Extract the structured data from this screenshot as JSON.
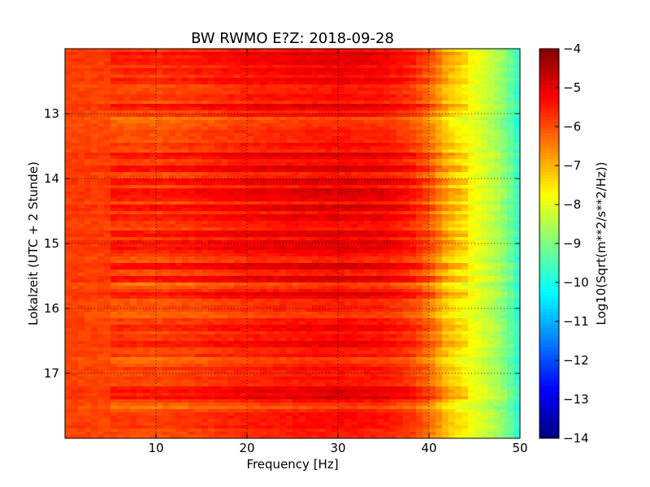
{
  "chart_data": {
    "type": "heatmap",
    "title": "BW RWMO E?Z: 2018-09-28",
    "xlabel": "Frequency [Hz]",
    "ylabel": "Lokalzeit (UTC + 2 Stunde)",
    "colorbar_label": "Log10(Sqrt(m**2/s**2/Hz))",
    "xlim": [
      0,
      50
    ],
    "ylim": [
      18.0,
      12.0
    ],
    "x_ticks": [
      10,
      20,
      30,
      40,
      50
    ],
    "y_ticks": [
      13,
      14,
      15,
      16,
      17
    ],
    "colorbar_range": [
      -14,
      -4
    ],
    "colorbar_ticks": [
      -4,
      -5,
      -6,
      -7,
      -8,
      -9,
      -10,
      -11,
      -12,
      -13,
      -14
    ],
    "colormap": "jet",
    "grid": true,
    "frequency_profile_hz": [
      0,
      5,
      10,
      15,
      20,
      25,
      30,
      35,
      38,
      40,
      42,
      44,
      46,
      48,
      50
    ],
    "frequency_profile_value": [
      -5.9,
      -5.9,
      -5.95,
      -5.8,
      -5.6,
      -5.5,
      -5.4,
      -5.5,
      -5.8,
      -6.3,
      -7.2,
      -7.7,
      -8.2,
      -8.8,
      -9.9
    ],
    "strong_bands_hour": [
      12.1,
      12.2,
      12.35,
      12.5,
      12.9,
      13.65,
      13.85,
      14.05,
      14.2,
      14.3,
      14.45,
      14.6,
      14.85,
      15.0,
      15.1,
      15.35,
      15.55,
      15.8,
      16.3,
      16.55,
      17.25,
      17.35
    ],
    "quiet_bands_hour": [
      13.1,
      13.2,
      15.65,
      16.1,
      16.8,
      17.5
    ]
  }
}
